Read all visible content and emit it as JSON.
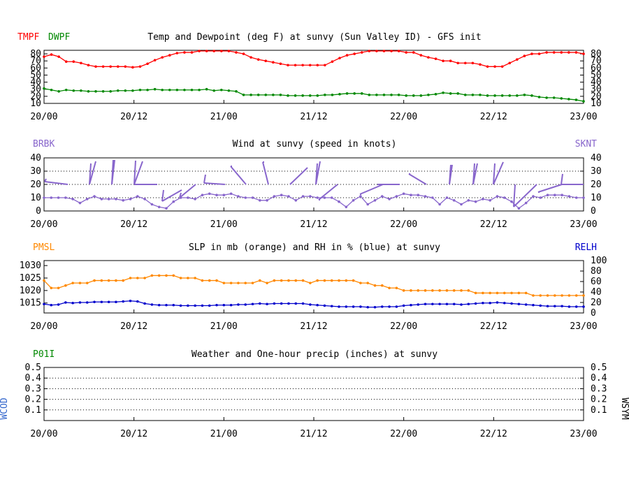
{
  "panels": {
    "temp": {
      "left_label_1": "TMPF",
      "left_label_2": "DWPF",
      "title": "Temp and Dewpoint (deg F) at sunvy (Sun Valley ID) - GFS init",
      "color_1": "#ff0000",
      "color_2": "#008800"
    },
    "wind": {
      "left_label": "BRBK",
      "right_label": "SKNT",
      "title": "Wind at  sunvy (speed in knots)",
      "color": "#8866cc"
    },
    "slp": {
      "left_label": "PMSL",
      "right_label": "RELH",
      "title": "SLP in mb (orange) and RH in % (blue) at  sunvy",
      "color_1": "#ff8800",
      "color_2": "#0000cc"
    },
    "precip": {
      "left_label": "P01I",
      "left_side_label": "WCOD",
      "right_side_label": "WSYM",
      "title": "Weather and One-hour precip (inches) at  sunvy",
      "left_label_color": "#008800",
      "side_label_color": "#3366cc"
    }
  },
  "chart_data": [
    {
      "type": "line",
      "x_ticks": [
        "20/00",
        "20/12",
        "21/00",
        "21/12",
        "22/00",
        "22/12",
        "23/00"
      ],
      "ylim": [
        10,
        85
      ],
      "yticks": [
        10,
        20,
        30,
        40,
        50,
        60,
        70,
        80
      ],
      "series": [
        {
          "name": "TMPF",
          "values": [
            76,
            79,
            76,
            69,
            69,
            67,
            64,
            62,
            62,
            62,
            62,
            62,
            61,
            62,
            66,
            71,
            75,
            78,
            81,
            82,
            82,
            84,
            84,
            84,
            84,
            84,
            82,
            80,
            75,
            72,
            70,
            68,
            66,
            64,
            64,
            64,
            64,
            64,
            64,
            69,
            74,
            78,
            80,
            82,
            84,
            84,
            84,
            84,
            84,
            82,
            82,
            78,
            75,
            73,
            70,
            70,
            67,
            67,
            67,
            65,
            62,
            62,
            62,
            67,
            72,
            77,
            80,
            80,
            82,
            82,
            82,
            82,
            82,
            80
          ]
        },
        {
          "name": "DWPF",
          "values": [
            31,
            29,
            27,
            29,
            28,
            28,
            27,
            27,
            27,
            27,
            28,
            28,
            28,
            29,
            29,
            30,
            29,
            29,
            29,
            29,
            29,
            29,
            30,
            28,
            29,
            28,
            27,
            22,
            22,
            22,
            22,
            22,
            22,
            21,
            21,
            21,
            21,
            21,
            22,
            22,
            23,
            24,
            24,
            24,
            22,
            22,
            22,
            22,
            22,
            21,
            21,
            21,
            22,
            23,
            25,
            24,
            24,
            22,
            22,
            22,
            21,
            21,
            21,
            21,
            21,
            22,
            21,
            19,
            18,
            18,
            17,
            16,
            15,
            13
          ]
        }
      ]
    },
    {
      "type": "line",
      "x_ticks": [
        "20/00",
        "20/12",
        "21/00",
        "21/12",
        "22/00",
        "22/12",
        "23/00"
      ],
      "ylim": [
        0,
        40
      ],
      "yticks": [
        0,
        10,
        20,
        30,
        40
      ],
      "series": [
        {
          "name": "SKNT",
          "values": [
            10,
            10,
            10,
            10,
            9,
            6,
            9,
            11,
            9,
            9,
            9,
            8,
            9,
            11,
            9,
            5,
            3,
            2,
            7,
            10,
            10,
            9,
            12,
            13,
            12,
            12,
            13,
            11,
            10,
            10,
            8,
            8,
            11,
            12,
            11,
            8,
            11,
            11,
            10,
            10,
            10,
            7,
            3,
            8,
            11,
            5,
            8,
            11,
            9,
            11,
            13,
            12,
            12,
            11,
            10,
            5,
            10,
            8,
            5,
            8,
            7,
            9,
            8,
            11,
            10,
            7,
            2,
            6,
            11,
            10,
            12,
            12,
            12,
            11,
            10,
            10
          ]
        }
      ]
    },
    {
      "type": "line",
      "x_ticks": [
        "20/00",
        "20/12",
        "21/00",
        "21/12",
        "22/00",
        "22/12",
        "23/00"
      ],
      "ylim": [
        1011,
        1032
      ],
      "yticks": [
        1015,
        1020,
        1025,
        1030
      ],
      "y2lim": [
        0,
        100
      ],
      "y2ticks": [
        0,
        20,
        40,
        60,
        80,
        100
      ],
      "series": [
        {
          "name": "PMSL",
          "values": [
            1024,
            1021,
            1021,
            1022,
            1023,
            1023,
            1023,
            1024,
            1024,
            1024,
            1024,
            1024,
            1025,
            1025,
            1025,
            1026,
            1026,
            1026,
            1026,
            1025,
            1025,
            1025,
            1024,
            1024,
            1024,
            1023,
            1023,
            1023,
            1023,
            1023,
            1024,
            1023,
            1024,
            1024,
            1024,
            1024,
            1024,
            1023,
            1024,
            1024,
            1024,
            1024,
            1024,
            1024,
            1023,
            1023,
            1022,
            1022,
            1021,
            1021,
            1020,
            1020,
            1020,
            1020,
            1020,
            1020,
            1020,
            1020,
            1020,
            1020,
            1019,
            1019,
            1019,
            1019,
            1019,
            1019,
            1019,
            1019,
            1018,
            1018,
            1018,
            1018,
            1018,
            1018,
            1018,
            1018
          ]
        },
        {
          "name": "RELH",
          "values": [
            17,
            15,
            16,
            20,
            19,
            20,
            20,
            21,
            21,
            21,
            21,
            22,
            23,
            22,
            18,
            16,
            15,
            15,
            15,
            14,
            14,
            14,
            14,
            14,
            15,
            15,
            15,
            16,
            16,
            17,
            18,
            17,
            18,
            18,
            18,
            18,
            18,
            16,
            15,
            14,
            13,
            12,
            12,
            12,
            12,
            11,
            11,
            12,
            12,
            12,
            14,
            15,
            16,
            17,
            17,
            17,
            17,
            17,
            16,
            17,
            18,
            19,
            19,
            20,
            19,
            18,
            17,
            16,
            15,
            14,
            13,
            13,
            13,
            12,
            12,
            12
          ]
        }
      ]
    },
    {
      "type": "line",
      "x_ticks": [
        "20/00",
        "20/12",
        "21/00",
        "21/12",
        "22/00",
        "22/12",
        "23/00"
      ],
      "ylim": [
        0,
        0.5
      ],
      "yticks": [
        0.1,
        0.2,
        0.3,
        0.4,
        0.5
      ],
      "series": [
        {
          "name": "P01I",
          "values": []
        }
      ]
    }
  ]
}
